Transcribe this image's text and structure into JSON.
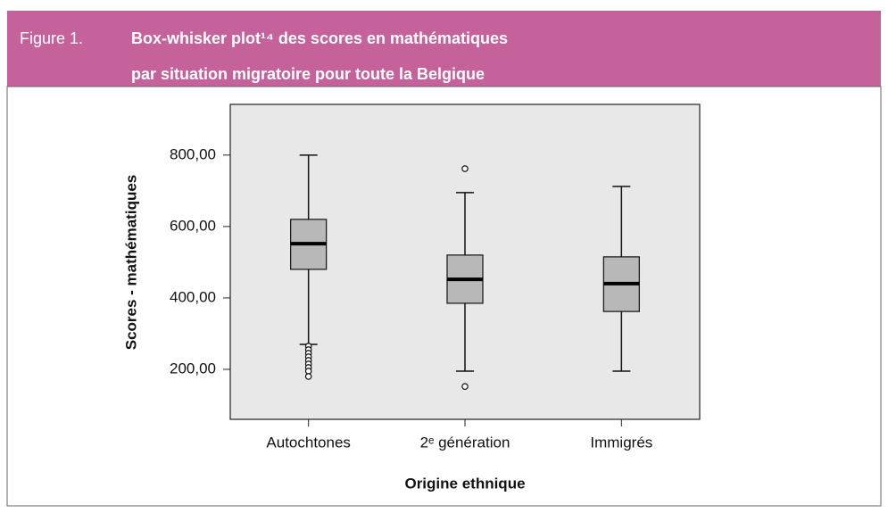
{
  "figure_label": "Figure 1.",
  "title_lines": [
    "Box-whisker plot¹⁴ des scores en mathématiques",
    "par situation migratoire pour toute la Belgique"
  ],
  "chart_data": {
    "type": "box",
    "x_label": "Origine ethnique",
    "y_label": "Scores - mathématiques",
    "categories": [
      "Autochtones",
      "2ᵉ génération",
      "Immigrés"
    ],
    "boxes": [
      {
        "whisker_low": 270,
        "q1": 480,
        "median": 552,
        "q3": 620,
        "whisker_high": 800,
        "outliers": [
          265,
          255,
          245,
          235,
          225,
          215,
          205,
          195,
          180
        ]
      },
      {
        "whisker_low": 195,
        "q1": 385,
        "median": 452,
        "q3": 520,
        "whisker_high": 695,
        "outliers": [
          762,
          152
        ]
      },
      {
        "whisker_low": 195,
        "q1": 362,
        "median": 440,
        "q3": 515,
        "whisker_high": 712,
        "outliers": []
      }
    ],
    "box_color": "#b8b8b8",
    "ylim": [
      60,
      942
    ],
    "yticks": [
      {
        "value": 200,
        "label": "200,00"
      },
      {
        "value": 400,
        "label": "400,00"
      },
      {
        "value": 600,
        "label": "600,00"
      },
      {
        "value": 800,
        "label": "800,00"
      }
    ]
  }
}
